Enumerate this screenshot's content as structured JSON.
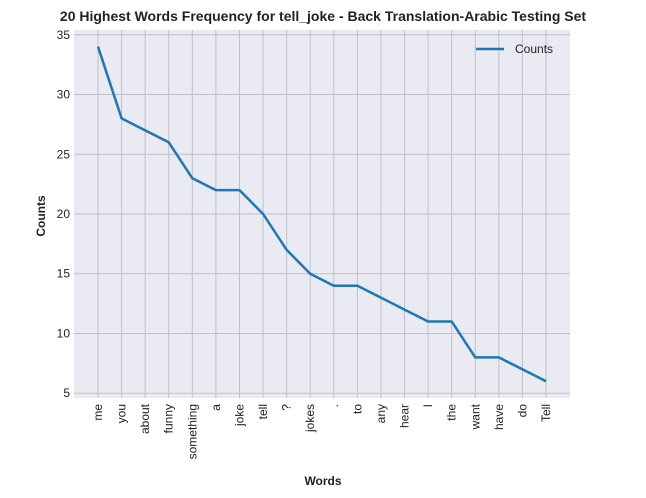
{
  "chart_data": {
    "type": "line",
    "title": "20 Highest Words Frequency for tell_joke - Back Translation-Arabic Testing Set",
    "xlabel": "Words",
    "ylabel": "Counts",
    "categories": [
      "me",
      "you",
      "about",
      "funny",
      "something",
      "a",
      "joke",
      "tell",
      "?",
      "jokes",
      ".",
      "to",
      "any",
      "hear",
      "I",
      "the",
      "want",
      "have",
      "do",
      "Tell"
    ],
    "series": [
      {
        "name": "Counts",
        "values": [
          34,
          28,
          27,
          26,
          23,
          22,
          22,
          20,
          17,
          15,
          14,
          14,
          13,
          12,
          11,
          11,
          8,
          8,
          7,
          6
        ]
      }
    ],
    "yticks": [
      5,
      10,
      15,
      20,
      25,
      30,
      35
    ],
    "ylim": [
      4.6,
      35.4
    ],
    "grid": true,
    "legend": "top-right",
    "colors": {
      "line": "#1f77b4",
      "plot_bg": "#eaeaf2",
      "grid": "#c0c0c8"
    }
  }
}
